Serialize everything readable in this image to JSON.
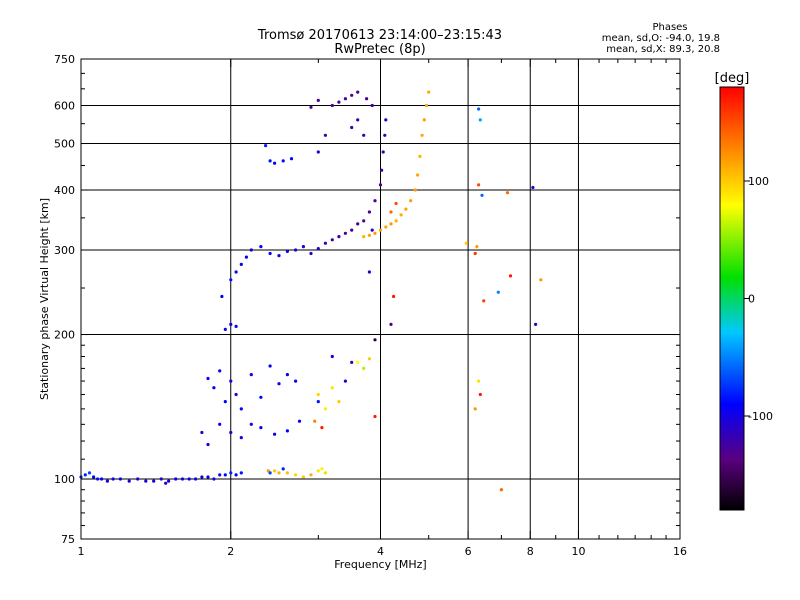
{
  "header": {
    "title_line1": "Tromsø 20170613 23:14:00–23:15:43",
    "title_line2": "RwPretec (8p)"
  },
  "phase_stats": {
    "title": "Phases",
    "line1": "mean, sd,O:  -94.0, 19.8",
    "line2": "mean, sd,X:  89.3, 20.8"
  },
  "colorbar": {
    "label": "[deg]",
    "range": [
      -180,
      180
    ],
    "ticks": [
      {
        "value": 100,
        "label": "100"
      },
      {
        "value": 0,
        "label": "0"
      },
      {
        "value": -100,
        "label": "-100"
      }
    ]
  },
  "colors": {
    "axis": "#000000",
    "grid": "#000000",
    "background": "#ffffff"
  },
  "chart_data": {
    "type": "scatter",
    "title": "Tromsø 20170613 23:14:00–23:15:43 RwPretec (8p)",
    "xlabel": "Frequency [MHz]",
    "ylabel": "Stationary phase Virtual Height [km]",
    "xscale": "log",
    "yscale": "log",
    "xlim": [
      1,
      16
    ],
    "ylim": [
      75,
      750
    ],
    "xticks": [
      {
        "value": 1,
        "label": "1"
      },
      {
        "value": 2,
        "label": "2"
      },
      {
        "value": 4,
        "label": "4"
      },
      {
        "value": 6,
        "label": "6"
      },
      {
        "value": 8,
        "label": "8"
      },
      {
        "value": 10,
        "label": "10"
      },
      {
        "value": 16,
        "label": "16"
      }
    ],
    "yticks": [
      {
        "value": 75,
        "label": "75"
      },
      {
        "value": 100,
        "label": "100"
      },
      {
        "value": 200,
        "label": "200"
      },
      {
        "value": 300,
        "label": "300"
      },
      {
        "value": 400,
        "label": "400"
      },
      {
        "value": 500,
        "label": "500"
      },
      {
        "value": 600,
        "label": "600"
      },
      {
        "value": 750,
        "label": "750"
      }
    ],
    "x_gridlines": [
      2,
      4,
      6,
      8,
      10
    ],
    "y_gridlines": [
      100,
      200,
      300,
      400,
      500,
      600
    ],
    "color_scale": "phase (deg)",
    "series": [
      {
        "name": "E-layer trace",
        "points": [
          [
            1.0,
            101,
            -75
          ],
          [
            1.02,
            102,
            -80
          ],
          [
            1.04,
            103,
            -70
          ],
          [
            1.06,
            101,
            -90
          ],
          [
            1.08,
            100,
            -85
          ],
          [
            1.1,
            100,
            -95
          ],
          [
            1.13,
            99,
            -100
          ],
          [
            1.16,
            100,
            -98
          ],
          [
            1.2,
            100,
            -95
          ],
          [
            1.25,
            99,
            -102
          ],
          [
            1.3,
            100,
            -100
          ],
          [
            1.35,
            99,
            -105
          ],
          [
            1.4,
            99,
            -98
          ],
          [
            1.45,
            100,
            -110
          ],
          [
            1.48,
            98,
            -112
          ],
          [
            1.5,
            99,
            -100
          ],
          [
            1.55,
            100,
            -95
          ],
          [
            1.6,
            100,
            -100
          ],
          [
            1.65,
            100,
            -96
          ],
          [
            1.7,
            100,
            -92
          ],
          [
            1.75,
            101,
            -98
          ],
          [
            1.8,
            101,
            -94
          ],
          [
            1.85,
            100,
            -100
          ],
          [
            1.9,
            102,
            -85
          ],
          [
            1.95,
            102,
            -88
          ],
          [
            2.0,
            103,
            -80
          ],
          [
            2.05,
            102,
            -90
          ],
          [
            2.1,
            103,
            -85
          ]
        ]
      },
      {
        "name": "E-layer X trace",
        "points": [
          [
            2.38,
            104,
            120
          ],
          [
            2.45,
            104,
            100
          ],
          [
            2.5,
            103,
            110
          ],
          [
            2.6,
            103,
            105
          ],
          [
            2.7,
            102,
            95
          ],
          [
            2.8,
            101,
            100
          ],
          [
            2.9,
            102,
            110
          ],
          [
            3.0,
            104,
            90
          ],
          [
            3.05,
            105,
            85
          ],
          [
            3.1,
            103,
            95
          ],
          [
            2.4,
            103,
            -70
          ],
          [
            2.55,
            105,
            -80
          ]
        ]
      },
      {
        "name": "Es/E2 scatter",
        "points": [
          [
            1.8,
            162,
            -90
          ],
          [
            1.85,
            155,
            -95
          ],
          [
            1.9,
            168,
            -100
          ],
          [
            1.95,
            145,
            -92
          ],
          [
            2.0,
            160,
            -98
          ],
          [
            2.05,
            150,
            -105
          ],
          [
            2.1,
            140,
            -95
          ],
          [
            2.2,
            165,
            -100
          ],
          [
            2.3,
            148,
            -90
          ],
          [
            2.4,
            172,
            -94
          ],
          [
            2.5,
            158,
            -98
          ],
          [
            2.6,
            165,
            -92
          ],
          [
            2.7,
            160,
            -96
          ],
          [
            1.75,
            125,
            -110
          ],
          [
            1.8,
            118,
            -100
          ],
          [
            1.9,
            130,
            -95
          ],
          [
            2.0,
            125,
            -105
          ],
          [
            2.1,
            122,
            -100
          ],
          [
            2.2,
            130,
            -98
          ],
          [
            2.3,
            128,
            -92
          ],
          [
            2.45,
            124,
            -96
          ],
          [
            2.6,
            126,
            -90
          ],
          [
            2.75,
            132,
            -94
          ],
          [
            3.0,
            145,
            -85
          ],
          [
            3.2,
            180,
            -100
          ],
          [
            3.4,
            160,
            -110
          ],
          [
            3.5,
            175,
            -120
          ],
          [
            3.0,
            150,
            95
          ],
          [
            3.1,
            140,
            85
          ],
          [
            3.2,
            155,
            90
          ],
          [
            3.3,
            145,
            100
          ],
          [
            3.6,
            175,
            80
          ],
          [
            3.7,
            170,
            60
          ],
          [
            3.8,
            178,
            100
          ],
          [
            2.95,
            132,
            130
          ],
          [
            3.05,
            128,
            170
          ],
          [
            3.9,
            135,
            170
          ]
        ]
      },
      {
        "name": "F-layer O trace",
        "points": [
          [
            1.95,
            205,
            -95
          ],
          [
            2.0,
            210,
            -98
          ],
          [
            2.05,
            208,
            -100
          ],
          [
            1.92,
            240,
            -90
          ],
          [
            2.0,
            260,
            -85
          ],
          [
            2.05,
            270,
            -88
          ],
          [
            2.1,
            280,
            -90
          ],
          [
            2.15,
            290,
            -92
          ],
          [
            2.2,
            300,
            -95
          ],
          [
            2.3,
            305,
            -90
          ],
          [
            2.4,
            295,
            -94
          ],
          [
            2.5,
            292,
            -98
          ],
          [
            2.6,
            298,
            -96
          ],
          [
            2.7,
            300,
            -100
          ],
          [
            2.8,
            305,
            -104
          ],
          [
            2.9,
            295,
            -110
          ],
          [
            3.0,
            302,
            -115
          ],
          [
            3.1,
            310,
            -118
          ],
          [
            3.2,
            315,
            -120
          ],
          [
            3.3,
            320,
            -122
          ],
          [
            3.4,
            325,
            -125
          ],
          [
            3.5,
            330,
            -128
          ],
          [
            3.6,
            340,
            -125
          ],
          [
            3.7,
            345,
            -130
          ],
          [
            3.8,
            360,
            -128
          ],
          [
            3.9,
            380,
            -126
          ],
          [
            4.0,
            410,
            -124
          ],
          [
            4.02,
            440,
            -122
          ],
          [
            4.05,
            480,
            -120
          ],
          [
            4.08,
            520,
            -118
          ],
          [
            4.1,
            560,
            -116
          ]
        ]
      },
      {
        "name": "F-layer X trace",
        "points": [
          [
            3.7,
            320,
            110
          ],
          [
            3.8,
            322,
            115
          ],
          [
            3.9,
            325,
            120
          ],
          [
            4.0,
            330,
            118
          ],
          [
            4.1,
            335,
            115
          ],
          [
            4.2,
            340,
            120
          ],
          [
            4.3,
            345,
            110
          ],
          [
            4.4,
            355,
            112
          ],
          [
            4.5,
            365,
            115
          ],
          [
            4.6,
            380,
            118
          ],
          [
            4.7,
            400,
            120
          ],
          [
            4.75,
            430,
            115
          ],
          [
            4.8,
            470,
            110
          ],
          [
            4.85,
            520,
            115
          ],
          [
            4.9,
            560,
            118
          ],
          [
            4.95,
            600,
            116
          ],
          [
            5.0,
            640,
            114
          ],
          [
            4.2,
            360,
            140
          ],
          [
            4.3,
            375,
            150
          ]
        ]
      },
      {
        "name": "Upper F scatter",
        "points": [
          [
            2.35,
            495,
            -80
          ],
          [
            2.4,
            460,
            -85
          ],
          [
            2.45,
            455,
            -90
          ],
          [
            2.55,
            460,
            -88
          ],
          [
            2.65,
            465,
            -92
          ],
          [
            3.0,
            480,
            -110
          ],
          [
            3.1,
            520,
            -120
          ],
          [
            3.2,
            600,
            -130
          ],
          [
            3.3,
            610,
            -125
          ],
          [
            3.4,
            620,
            -128
          ],
          [
            3.5,
            630,
            -130
          ],
          [
            3.6,
            640,
            -126
          ],
          [
            3.75,
            620,
            -124
          ],
          [
            3.85,
            600,
            -122
          ],
          [
            3.6,
            560,
            -118
          ],
          [
            3.7,
            520,
            -115
          ],
          [
            3.5,
            540,
            -120
          ],
          [
            2.9,
            595,
            -140
          ],
          [
            3.0,
            615,
            -135
          ]
        ]
      },
      {
        "name": "Isolated points",
        "points": [
          [
            5.95,
            310,
            100
          ],
          [
            6.2,
            295,
            160
          ],
          [
            6.25,
            305,
            120
          ],
          [
            6.3,
            590,
            -60
          ],
          [
            6.35,
            560,
            -40
          ],
          [
            6.3,
            410,
            150
          ],
          [
            6.4,
            390,
            -60
          ],
          [
            7.2,
            395,
            140
          ],
          [
            6.45,
            235,
            155
          ],
          [
            7.3,
            265,
            170
          ],
          [
            6.9,
            245,
            -50
          ],
          [
            8.1,
            405,
            -110
          ],
          [
            8.2,
            210,
            -120
          ],
          [
            8.4,
            260,
            120
          ],
          [
            6.3,
            160,
            90
          ],
          [
            6.35,
            150,
            170
          ],
          [
            6.2,
            140,
            120
          ],
          [
            7.0,
            95,
            140
          ],
          [
            4.2,
            210,
            -130
          ],
          [
            4.25,
            240,
            170
          ],
          [
            3.9,
            195,
            -160
          ],
          [
            3.8,
            270,
            -110
          ],
          [
            3.85,
            330,
            -110
          ]
        ]
      }
    ]
  }
}
